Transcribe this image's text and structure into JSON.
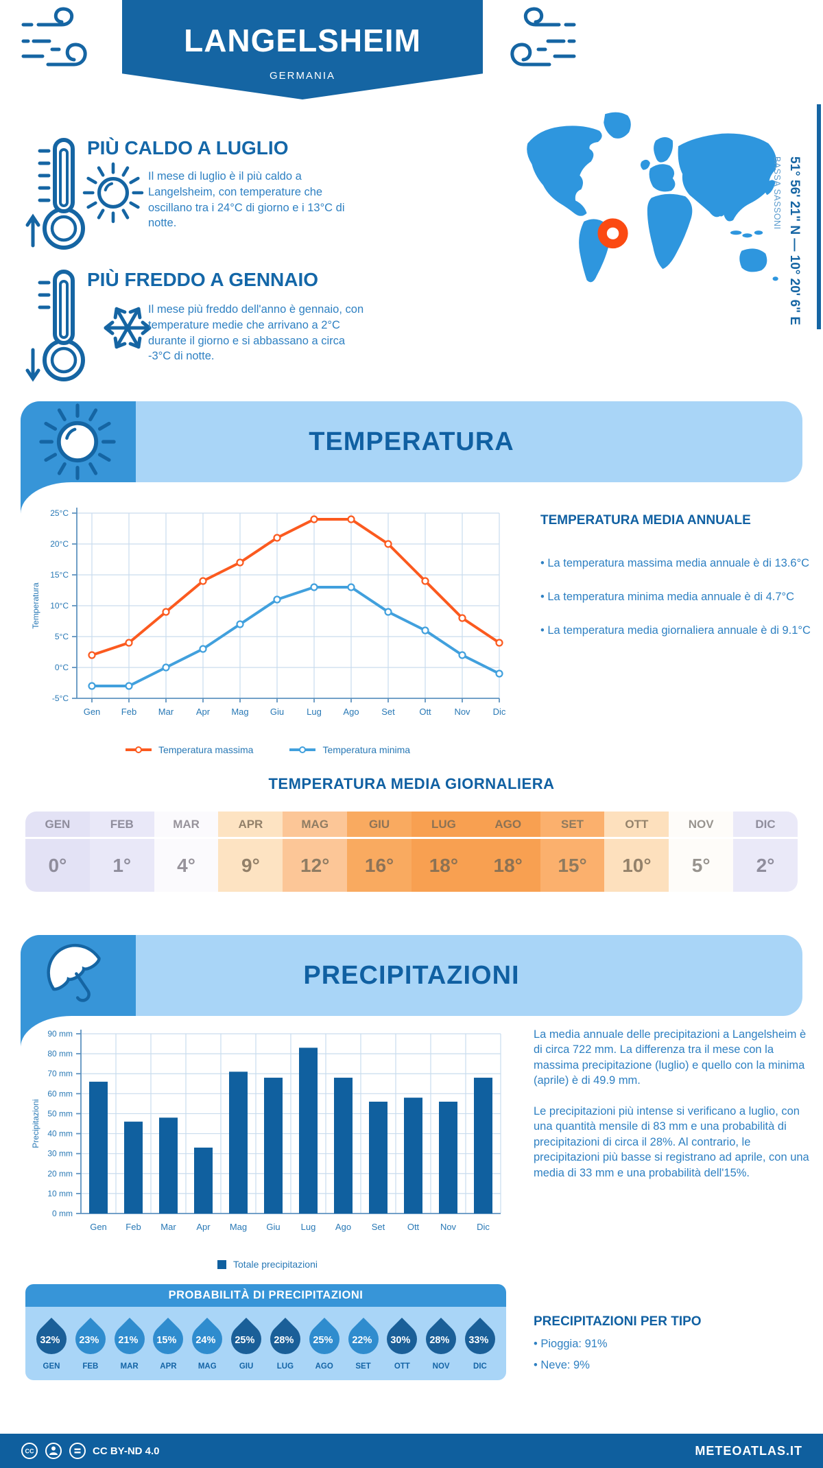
{
  "header": {
    "title": "LANGELSHEIM",
    "subtitle": "GERMANIA"
  },
  "highlights": {
    "warm": {
      "title": "PIÙ CALDO A LUGLIO",
      "text": "Il mese di luglio è il più caldo a Langelsheim, con temperature che oscillano tra i 24°C di giorno e i 13°C di notte."
    },
    "cold": {
      "title": "PIÙ FREDDO A GENNAIO",
      "text": "Il mese più freddo dell'anno è gennaio, con temperature medie che arrivano a 2°C durante il giorno e si abbassano a circa -3°C di notte."
    }
  },
  "location": {
    "coordinates": "51° 56' 21\" N — 10° 20' 6\" E",
    "region": "BASSA SASSONI"
  },
  "temperature": {
    "section_title": "TEMPERATURA",
    "chart_data": {
      "type": "line",
      "categories": [
        "Gen",
        "Feb",
        "Mar",
        "Apr",
        "Mag",
        "Giu",
        "Lug",
        "Ago",
        "Set",
        "Ott",
        "Nov",
        "Dic"
      ],
      "series": [
        {
          "name": "Temperatura massima",
          "color": "#fb5a1f",
          "values": [
            2,
            4,
            9,
            14,
            17,
            21,
            24,
            24,
            20,
            14,
            8,
            4
          ]
        },
        {
          "name": "Temperatura minima",
          "color": "#41a0dd",
          "values": [
            -3,
            -3,
            0,
            3,
            7,
            11,
            13,
            13,
            9,
            6,
            2,
            -1
          ]
        }
      ],
      "ylabel": "Temperatura",
      "ylim": [
        -5,
        25
      ],
      "ytick_step": 5,
      "ytick_suffix": "°C",
      "grid": true,
      "legend_position": "bottom"
    },
    "annual": {
      "title": "TEMPERATURA MEDIA ANNUALE",
      "bullets": [
        "• La temperatura massima media annuale è di 13.6°C",
        "• La temperatura minima media annuale è di 4.7°C",
        "• La temperatura media giornaliera annuale è di 9.1°C"
      ]
    },
    "daily": {
      "title": "TEMPERATURA MEDIA GIORNALIERA",
      "months": [
        "GEN",
        "FEB",
        "MAR",
        "APR",
        "MAG",
        "GIU",
        "LUG",
        "AGO",
        "SET",
        "OTT",
        "NOV",
        "DIC"
      ],
      "values": [
        "0°",
        "1°",
        "4°",
        "9°",
        "12°",
        "16°",
        "18°",
        "18°",
        "15°",
        "10°",
        "5°",
        "2°"
      ],
      "cell_colors": [
        "#e3e2f5",
        "#e9e8f8",
        "#fbfafd",
        "#fde3c2",
        "#fcc697",
        "#f9aa60",
        "#f8a051",
        "#f8a051",
        "#fbb06d",
        "#fde0bd",
        "#fefcf9",
        "#eae9f8"
      ],
      "text_colors": [
        "#8f8d9c",
        "#8f8d9c",
        "#97939b",
        "#928069",
        "#8f7c63",
        "#8d7358",
        "#8c7254",
        "#8c7254",
        "#8e7a5f",
        "#94826b",
        "#98948f",
        "#8f8d9c"
      ]
    }
  },
  "precipitation": {
    "section_title": "PRECIPITAZIONI",
    "chart_data": {
      "type": "bar",
      "categories": [
        "Gen",
        "Feb",
        "Mar",
        "Apr",
        "Mag",
        "Giu",
        "Lug",
        "Ago",
        "Set",
        "Ott",
        "Nov",
        "Dic"
      ],
      "values": [
        66,
        46,
        48,
        33,
        71,
        68,
        83,
        68,
        56,
        58,
        56,
        68
      ],
      "series_name": "Totale precipitazioni",
      "color": "#10609f",
      "ylabel": "Precipitazioni",
      "ylim": [
        0,
        90
      ],
      "ytick_step": 10,
      "ytick_suffix": " mm",
      "grid": true
    },
    "paragraphs": [
      "La media annuale delle precipitazioni a Langelsheim è di circa 722 mm. La differenza tra il mese con la massima precipitazione (luglio) e quello con la minima (aprile) è di 49.9 mm.",
      "Le precipitazioni più intense si verificano a luglio, con una quantità mensile di 83 mm e una probabilità di precipitazioni di circa il 28%. Al contrario, le precipitazioni più basse si registrano ad aprile, con una media di 33 mm e una probabilità dell'15%."
    ],
    "probability": {
      "title": "PROBABILITÀ DI PRECIPITAZIONI",
      "months": [
        "GEN",
        "FEB",
        "MAR",
        "APR",
        "MAG",
        "GIU",
        "LUG",
        "AGO",
        "SET",
        "OTT",
        "NOV",
        "DIC"
      ],
      "values": [
        "32%",
        "23%",
        "21%",
        "15%",
        "24%",
        "25%",
        "28%",
        "25%",
        "22%",
        "30%",
        "28%",
        "33%"
      ],
      "dark": [
        true,
        false,
        false,
        false,
        false,
        true,
        true,
        false,
        false,
        true,
        true,
        true
      ]
    },
    "types": {
      "title": "PRECIPITAZIONI PER TIPO",
      "bullets": [
        "• Pioggia: 91%",
        "• Neve: 9%"
      ]
    }
  },
  "footer": {
    "license": "CC BY-ND 4.0",
    "site": "METEOATLAS.IT"
  },
  "colors": {
    "primary": "#1565a3",
    "band_light": "#a9d5f7",
    "band_mid": "#3795d8",
    "body_text": "#2e80c2",
    "max_line": "#fb5a1f",
    "min_line": "#41a0dd",
    "bar": "#10609f",
    "drop_dark": "#1a5f98",
    "drop_light": "#2f8cce",
    "marker": "#fb4a12"
  }
}
